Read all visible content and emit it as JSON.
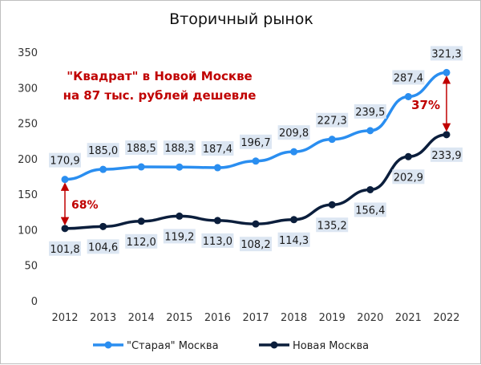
{
  "chart_data": {
    "type": "line",
    "title": "Вторичный рынок",
    "categories": [
      "2012",
      "2013",
      "2014",
      "2015",
      "2016",
      "2017",
      "2018",
      "2019",
      "2020",
      "2021",
      "2022"
    ],
    "series": [
      {
        "name": "\"Старая\" Москва",
        "color": "#2a8ef0",
        "values": [
          170.9,
          185.0,
          188.5,
          188.3,
          187.4,
          196.7,
          209.8,
          227.3,
          239.5,
          287.4,
          321.3
        ],
        "labels": [
          "170,9",
          "185,0",
          "188,5",
          "188,3",
          "187,4",
          "196,7",
          "209,8",
          "227,3",
          "239,5",
          "287,4",
          "321,3"
        ]
      },
      {
        "name": "Новая Москва",
        "color": "#0b1e3c",
        "values": [
          101.8,
          104.6,
          112.0,
          119.2,
          113.0,
          108.2,
          114.3,
          135.2,
          156.4,
          202.9,
          233.9
        ],
        "labels": [
          "101,8",
          "104,6",
          "112,0",
          "119,2",
          "113,0",
          "108,2",
          "114,3",
          "135,2",
          "156,4",
          "202,9",
          "233,9"
        ]
      }
    ],
    "ylim": [
      0,
      350
    ],
    "yticks": [
      "0",
      "50",
      "100",
      "150",
      "200",
      "250",
      "300",
      "350"
    ],
    "grid": false,
    "legend_position": "bottom",
    "annotations": {
      "headline_line1": "\"Квадрат\" в Новой Москве",
      "headline_line2": "на 87 тыс. рублей дешевле",
      "gap_2012": "68%",
      "gap_2022": "37%"
    },
    "annotation_color": "#c00000",
    "label_box_color": "#dce6f2"
  }
}
